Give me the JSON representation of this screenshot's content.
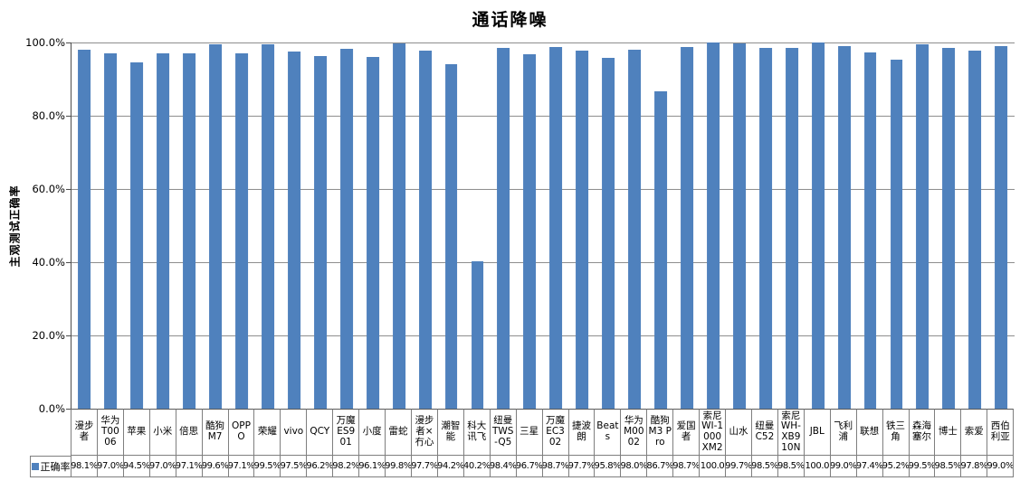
{
  "title": "通话降噪",
  "y_axis": {
    "title": "主观测试正确率",
    "tick_labels": [
      "100.0%",
      "80.0%",
      "60.0%",
      "40.0%",
      "20.0%",
      "0.0%"
    ]
  },
  "legend": {
    "series_label": "正确率"
  },
  "colors": {
    "bar": "#4F81BD",
    "gridline": "#8e8e8e",
    "axis": "#4d4d4d",
    "table_border": "#7f7f7f"
  },
  "chart_data": {
    "type": "bar",
    "title": "通话降噪",
    "xlabel": "",
    "ylabel": "主观测试正确率",
    "ylim": [
      0,
      100
    ],
    "y_tick_step": 20,
    "y_tick_format": "percent_1dp",
    "grid": true,
    "legend_position": "bottom-left-table-row",
    "categories": [
      "漫步者",
      "华为T0006",
      "苹果",
      "小米",
      "倍思",
      "酷狗M7",
      "OPPO",
      "荣耀",
      "vivo",
      "QCY",
      "万魔ES901",
      "小度",
      "雷蛇",
      "漫步者×冇心",
      "潮智能",
      "科大讯飞",
      "纽曼TWS-Q5",
      "三星",
      "万魔EC302",
      "捷波朗",
      "Beats",
      "华为M0002",
      "酷狗M3 Pro",
      "爱国者",
      "索尼WI-1000XM2",
      "山水",
      "纽曼C52",
      "索尼WH-XB910N",
      "JBL",
      "飞利浦",
      "联想",
      "铁三角",
      "森海塞尔",
      "博士",
      "索爱",
      "西伯利亚"
    ],
    "series": [
      {
        "name": "正确率",
        "values": [
          98.1,
          97.0,
          94.5,
          97.0,
          97.1,
          99.6,
          97.1,
          99.5,
          97.5,
          96.2,
          98.2,
          96.1,
          99.8,
          97.7,
          94.2,
          40.2,
          98.4,
          96.7,
          98.7,
          97.7,
          95.8,
          98.0,
          86.7,
          98.7,
          100.0,
          99.7,
          98.5,
          98.5,
          100.0,
          99.0,
          97.4,
          95.2,
          99.5,
          98.5,
          97.8,
          99.0
        ],
        "value_labels": [
          "98.1%",
          "97.0%",
          "94.5%",
          "97.0%",
          "97.1%",
          "99.6%",
          "97.1%",
          "99.5%",
          "97.5%",
          "96.2%",
          "98.2%",
          "96.1%",
          "99.8%",
          "97.7%",
          "94.2%",
          "40.2%",
          "98.4%",
          "96.7%",
          "98.7%",
          "97.7%",
          "95.8%",
          "98.0%",
          "86.7%",
          "98.7%",
          "100.0",
          "99.7%",
          "98.5%",
          "98.5%",
          "100.0",
          "99.0%",
          "97.4%",
          "95.2%",
          "99.5%",
          "98.5%",
          "97.8%",
          "99.0%"
        ]
      }
    ]
  }
}
